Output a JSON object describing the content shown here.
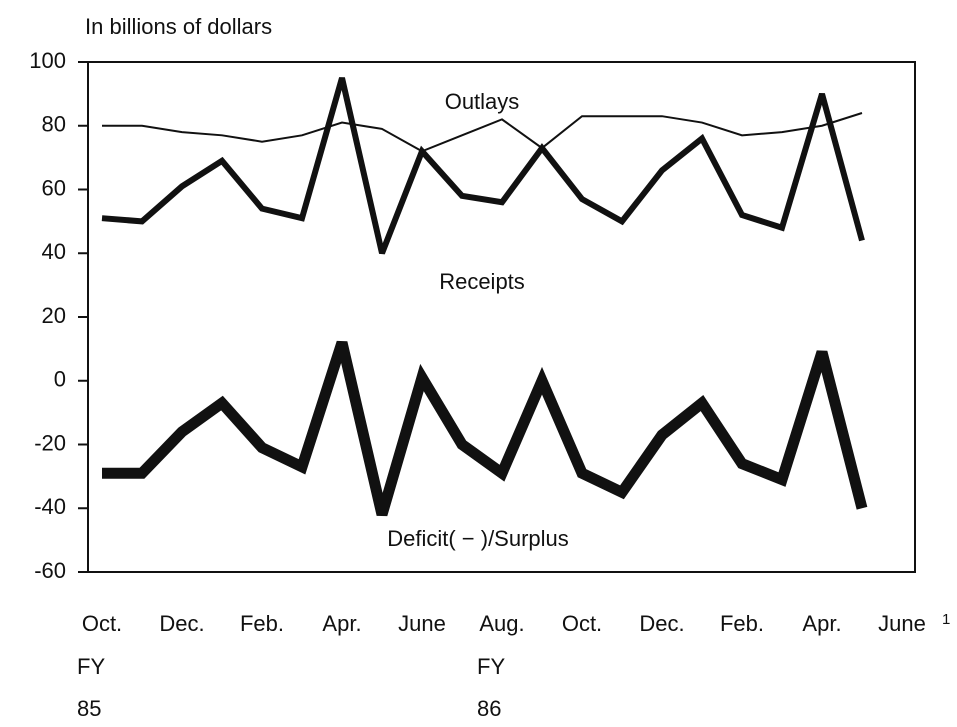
{
  "chart_data": {
    "type": "line",
    "y_axis_label": "In billions of dollars",
    "categories": [
      "Oct.",
      null,
      "Dec.",
      null,
      "Feb.",
      null,
      "Apr.",
      null,
      "June",
      null,
      "Aug.",
      null,
      "Oct.",
      null,
      "Dec.",
      null,
      "Feb.",
      null,
      "Apr.",
      null,
      "June"
    ],
    "fiscal_year_labels": [
      [
        "FY",
        "85"
      ],
      [
        "FY",
        "86"
      ]
    ],
    "footnote_marker": "1",
    "series": [
      {
        "name": "Outlays",
        "color": "#111111",
        "width": 2,
        "values": [
          80,
          80,
          78,
          77,
          75,
          77,
          81,
          79,
          72,
          77,
          82,
          73,
          83,
          83,
          83,
          81,
          77,
          78,
          80,
          84,
          null
        ]
      },
      {
        "name": "Receipts",
        "color": "#111111",
        "width": 6,
        "values": [
          51,
          50,
          61,
          69,
          54,
          51,
          95,
          40,
          72,
          58,
          56,
          73,
          57,
          50,
          66,
          76,
          52,
          48,
          90,
          44,
          null
        ]
      },
      {
        "name": "Deficit( − )/Surplus",
        "color": "#111111",
        "width": 11,
        "values": [
          -29,
          -29,
          -16,
          -7,
          -21,
          -27,
          12,
          -42,
          1,
          -20,
          -29,
          0,
          -29,
          -35,
          -17,
          -7,
          -26,
          -31,
          9,
          -40,
          null
        ]
      }
    ],
    "ylim": [
      -60,
      100
    ],
    "yticks": [
      -60,
      -40,
      -20,
      0,
      20,
      40,
      60,
      80,
      100
    ]
  }
}
